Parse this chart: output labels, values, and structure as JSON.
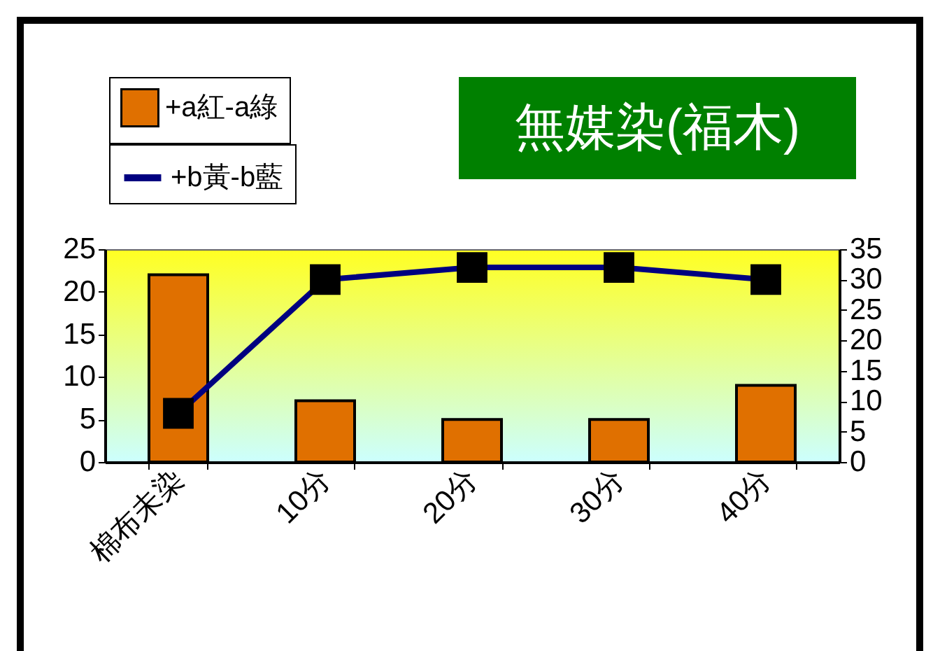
{
  "chart_data": {
    "type": "bar",
    "title": "無媒染(福木)",
    "categories": [
      "棉布未染",
      "10分",
      "20分",
      "30分",
      "40分"
    ],
    "series": [
      {
        "name": "+a紅-a綠",
        "color": "#e07000",
        "values": [
          22,
          7.2,
          5,
          5,
          9
        ]
      },
      {
        "name": "+b黃-b藍",
        "type": "line",
        "color": "#000080",
        "axis": "y2",
        "values": [
          8,
          30,
          32,
          32,
          30
        ]
      }
    ],
    "ylim": [
      0,
      25
    ],
    "yticks": [
      0,
      5,
      10,
      15,
      20,
      25
    ],
    "y2lim": [
      0,
      35
    ],
    "y2ticks": [
      0,
      5,
      10,
      15,
      20,
      25,
      30,
      35
    ],
    "legend": "top left",
    "marker": "square",
    "grid": false
  }
}
